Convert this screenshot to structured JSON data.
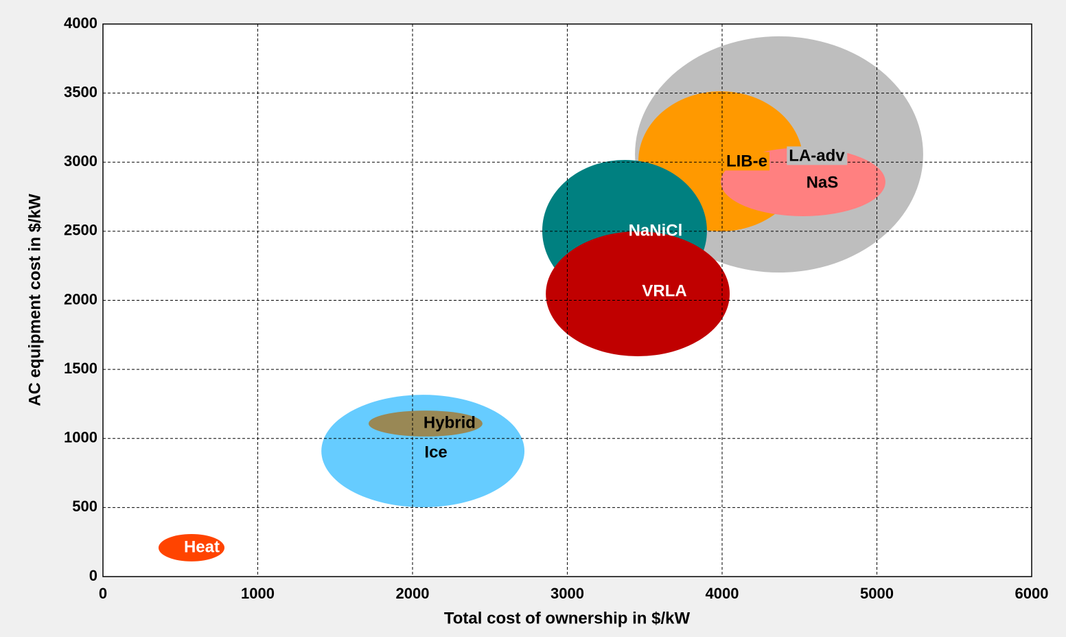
{
  "chart_data": {
    "type": "ellipse",
    "x_label": "Total cost of ownership in $/kW",
    "y_label": "AC equipment cost in $/kW",
    "xlim": [
      0,
      6000
    ],
    "xticks": [
      0,
      1000,
      2000,
      3000,
      4000,
      5000,
      6000
    ],
    "ylim": [
      0,
      4000
    ],
    "yticks": [
      0,
      500,
      1000,
      1500,
      2000,
      2500,
      3000,
      3500,
      4000
    ],
    "grid": true,
    "series": [
      {
        "name": "LA-adv",
        "color": "#bebebe",
        "x": 4368,
        "y": 3056,
        "rx": 931,
        "ry": 855
      },
      {
        "name": "LIB-e",
        "color": "#ff9900",
        "x": 3991,
        "y": 3006,
        "rx": 532,
        "ry": 507
      },
      {
        "name": "NaS",
        "color": "#ff8080",
        "x": 4523,
        "y": 2857,
        "rx": 532,
        "ry": 248
      },
      {
        "name": "NaNiCl",
        "color": "#008080",
        "x": 3370,
        "y": 2504,
        "rx": 532,
        "ry": 512
      },
      {
        "name": "VRLA",
        "color": "#c00000",
        "x": 3455,
        "y": 2047,
        "rx": 594,
        "ry": 452
      },
      {
        "name": "Ice",
        "color": "#66ccff",
        "x": 2067,
        "y": 909,
        "rx": 656,
        "ry": 407
      },
      {
        "name": "Hybrid",
        "color": "#998855",
        "x": 2084,
        "y": 1108,
        "rx": 368,
        "ry": 94
      },
      {
        "name": "Heat",
        "color": "#ff4400",
        "x": 572,
        "y": 209,
        "rx": 213,
        "ry": 99
      }
    ]
  }
}
